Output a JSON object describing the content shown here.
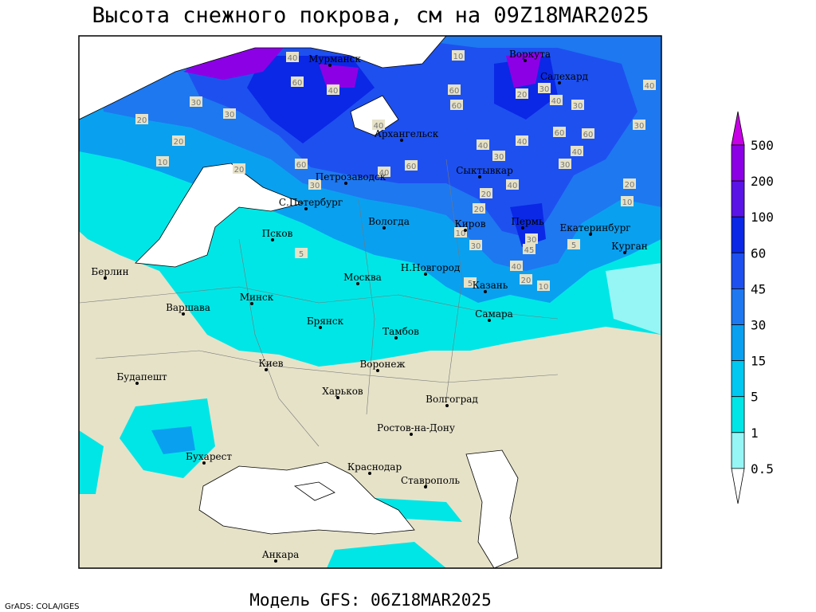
{
  "header": {
    "title": "Высота снежного покрова, см на 09Z18MAR2025"
  },
  "map": {
    "cities": [
      "Мурманск",
      "Воркута",
      "Салехард",
      "Архангельск",
      "Сыктывкар",
      "Петрозаводск",
      "С.Петербург",
      "Вологда",
      "Киров",
      "Пермь",
      "Екатеринбург",
      "Курган",
      "Псков",
      "Берлин",
      "Москва",
      "Н.Новгород",
      "Казань",
      "Варшава",
      "Минск",
      "Самара",
      "Брянск",
      "Тамбов",
      "Киев",
      "Воронеж",
      "Будапешт",
      "Харьков",
      "Волгоград",
      "Ростов-на-Дону",
      "Бухарест",
      "Краснодар",
      "Ставрополь",
      "Анкара"
    ],
    "contour_labels": [
      40,
      10,
      60,
      40,
      30,
      30,
      20,
      40,
      60,
      60,
      20,
      30,
      40,
      30,
      30,
      40,
      20,
      10,
      20,
      60,
      40,
      30,
      40,
      60,
      60,
      40,
      30,
      60,
      40,
      20,
      20,
      30,
      20,
      40,
      10,
      30,
      40,
      20,
      10,
      10,
      5,
      5,
      5,
      30,
      45
    ]
  },
  "legend": {
    "levels": [
      500,
      200,
      100,
      60,
      45,
      30,
      15,
      5,
      1,
      0.5
    ],
    "colors": [
      "#c800e6",
      "#8c00e6",
      "#5a14e6",
      "#0a28e6",
      "#1e50f0",
      "#1e78f0",
      "#0aa0f0",
      "#00c8f0",
      "#00e6e6",
      "#96f5f5",
      "#ffffff"
    ]
  },
  "footer": {
    "credit": "GrADS: COLA/IGES",
    "model": "Модель GFS: 06Z18MAR2025"
  }
}
